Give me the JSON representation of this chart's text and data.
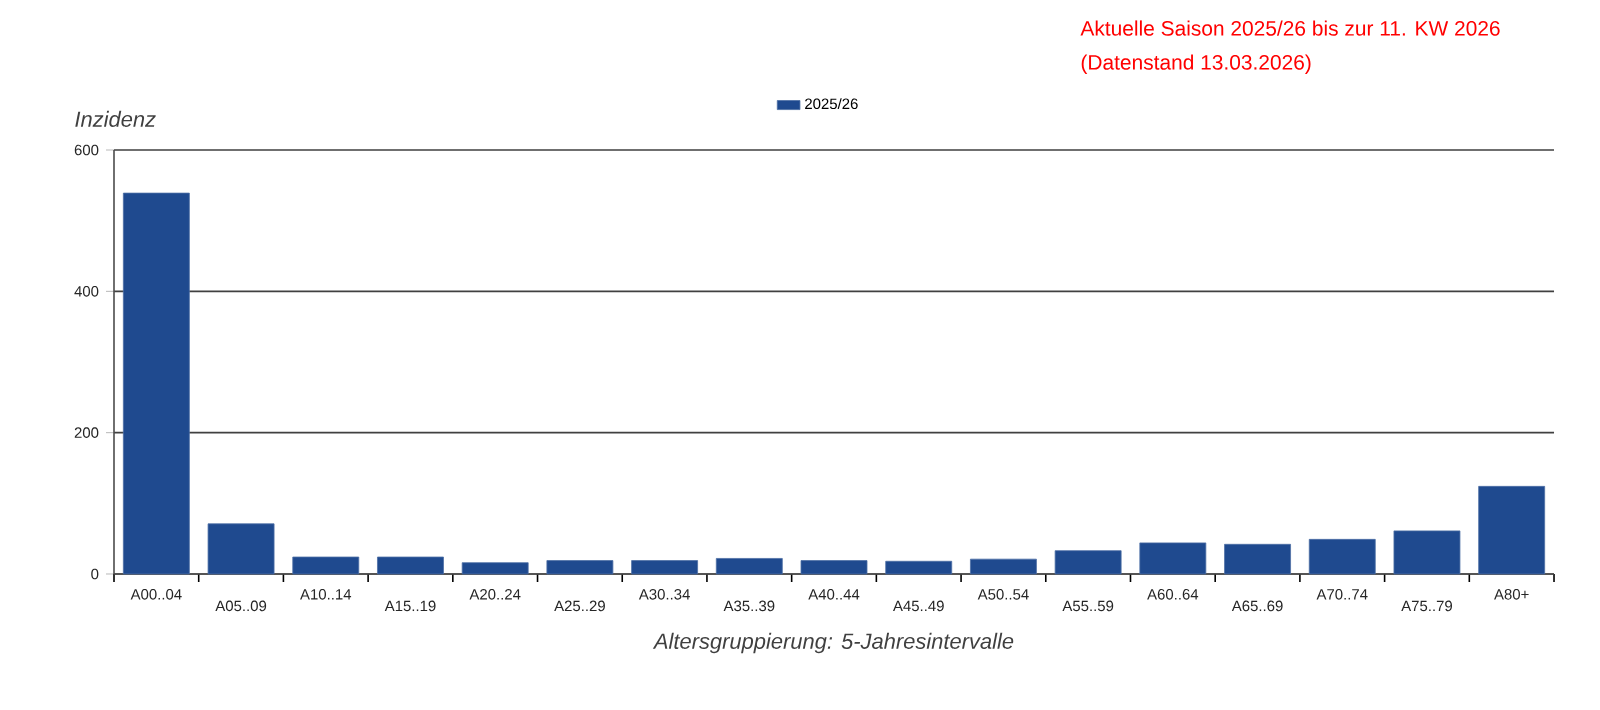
{
  "chart_data": {
    "type": "bar",
    "ylabel": "Inzidenz",
    "xlabel": "Altersgruppierung: 5-Jahresintervalle",
    "categories": [
      "A00..04",
      "A05..09",
      "A10..14",
      "A15..19",
      "A20..24",
      "A25..29",
      "A30..34",
      "A35..39",
      "A40..44",
      "A45..49",
      "A50..54",
      "A55..59",
      "A60..64",
      "A65..69",
      "A70..74",
      "A75..79",
      "A80+"
    ],
    "series": [
      {
        "name": "2025/26",
        "color": "#1f4a8f",
        "values": [
          539,
          71,
          24,
          24,
          16,
          19,
          19,
          22,
          19,
          18,
          21,
          33,
          44,
          42,
          49,
          61,
          124
        ]
      }
    ],
    "ylim": [
      0,
      600
    ],
    "yticks": [
      0,
      200,
      400,
      600
    ],
    "grid": "y",
    "legend": "top",
    "annotations": [
      "Aktuelle Saison 2025/26 bis zur 11. KW 2026",
      "(Datenstand 13.03.2026)"
    ]
  }
}
